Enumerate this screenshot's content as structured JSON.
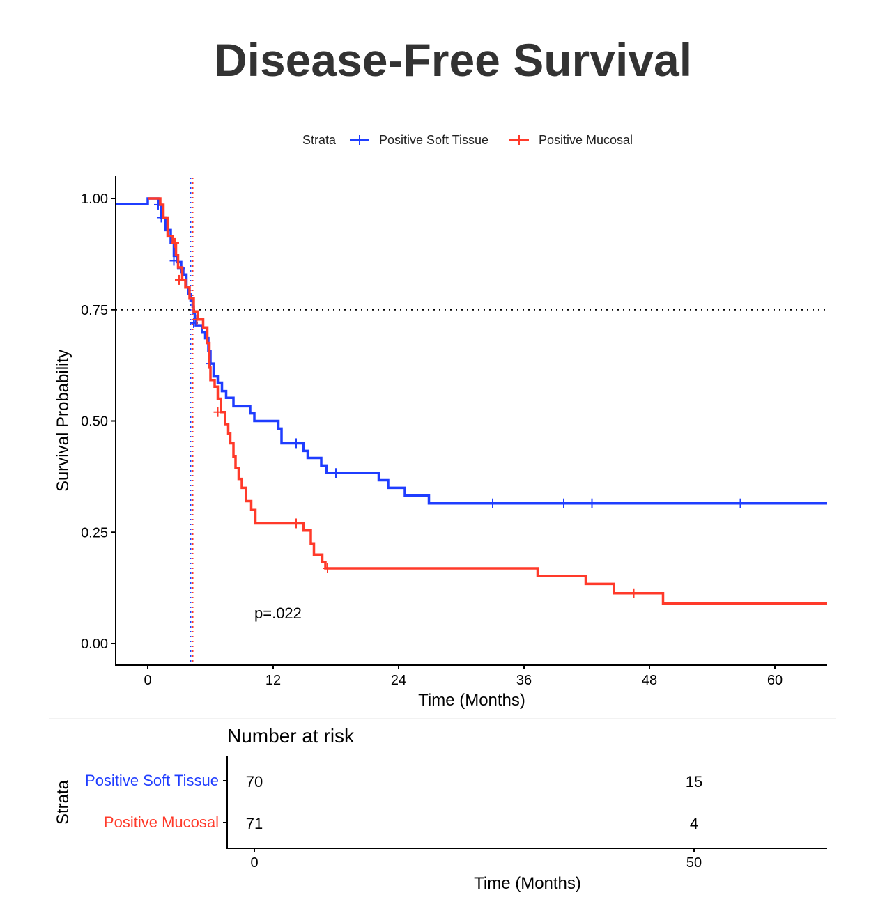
{
  "title": "Disease-Free Survival",
  "colors": {
    "blue": "#1f3dff",
    "red": "#ff3a2a"
  },
  "chart_data": [
    {
      "type": "line",
      "subtype": "kaplan-meier step",
      "title": "Disease-Free Survival",
      "xlabel": "Time (Months)",
      "ylabel": "Survival Probability",
      "xlim": [
        -3,
        65
      ],
      "ylim": [
        -0.05,
        1.05
      ],
      "xticks": [
        0,
        12,
        24,
        36,
        48,
        60
      ],
      "yticks": [
        "0.00",
        "0.25",
        "0.50",
        "0.75",
        "1.00"
      ],
      "legend": {
        "title": "Strata",
        "placement": "top"
      },
      "annotation": "p=.022",
      "annotation_pos": [
        10,
        0.07
      ],
      "reference_line_y": 0.75,
      "median_lines": [
        4.1,
        4.3
      ],
      "grid": false,
      "series": [
        {
          "name": "Positive Soft Tissue",
          "color": "#1f3dff",
          "median": 4.1,
          "steps": [
            [
              -3,
              0.987
            ],
            [
              0,
              1.0
            ],
            [
              1.0,
              0.986
            ],
            [
              1.3,
              0.957
            ],
            [
              1.7,
              0.929
            ],
            [
              2.2,
              0.9
            ],
            [
              2.5,
              0.871
            ],
            [
              2.8,
              0.857
            ],
            [
              3.2,
              0.843
            ],
            [
              3.4,
              0.829
            ],
            [
              3.7,
              0.8
            ],
            [
              3.9,
              0.786
            ],
            [
              4.1,
              0.771
            ],
            [
              4.3,
              0.757
            ],
            [
              4.4,
              0.743
            ],
            [
              4.5,
              0.729
            ],
            [
              4.6,
              0.715
            ],
            [
              5.2,
              0.7
            ],
            [
              5.5,
              0.686
            ],
            [
              5.8,
              0.657
            ],
            [
              6.0,
              0.629
            ],
            [
              6.3,
              0.6
            ],
            [
              6.7,
              0.586
            ],
            [
              7.1,
              0.567
            ],
            [
              7.5,
              0.552
            ],
            [
              8.2,
              0.533
            ],
            [
              9.8,
              0.517
            ],
            [
              10.2,
              0.5
            ],
            [
              12.5,
              0.483
            ],
            [
              12.8,
              0.45
            ],
            [
              14.9,
              0.433
            ],
            [
              15.3,
              0.417
            ],
            [
              16.6,
              0.4
            ],
            [
              17.1,
              0.383
            ],
            [
              22.1,
              0.367
            ],
            [
              23.0,
              0.35
            ],
            [
              24.6,
              0.333
            ],
            [
              26.9,
              0.315
            ],
            [
              65,
              0.315
            ]
          ],
          "censored": [
            [
              1.0,
              0.986
            ],
            [
              1.3,
              0.957
            ],
            [
              2.5,
              0.86
            ],
            [
              3.2,
              0.843
            ],
            [
              4.4,
              0.72
            ],
            [
              6.0,
              0.629
            ],
            [
              14.2,
              0.45
            ],
            [
              18.0,
              0.383
            ],
            [
              33.0,
              0.315
            ],
            [
              39.8,
              0.315
            ],
            [
              42.5,
              0.315
            ],
            [
              56.7,
              0.315
            ]
          ]
        },
        {
          "name": "Positive Mucosal",
          "color": "#ff3a2a",
          "median": 4.3,
          "steps": [
            [
              0,
              1.0
            ],
            [
              1.2,
              0.986
            ],
            [
              1.5,
              0.957
            ],
            [
              1.9,
              0.915
            ],
            [
              2.4,
              0.9
            ],
            [
              2.7,
              0.873
            ],
            [
              2.9,
              0.845
            ],
            [
              3.3,
              0.817
            ],
            [
              3.6,
              0.8
            ],
            [
              4.0,
              0.775
            ],
            [
              4.4,
              0.746
            ],
            [
              4.8,
              0.728
            ],
            [
              5.3,
              0.71
            ],
            [
              5.7,
              0.675
            ],
            [
              5.9,
              0.62
            ],
            [
              6.0,
              0.592
            ],
            [
              6.4,
              0.577
            ],
            [
              6.7,
              0.55
            ],
            [
              7.0,
              0.52
            ],
            [
              7.4,
              0.493
            ],
            [
              7.7,
              0.472
            ],
            [
              7.9,
              0.45
            ],
            [
              8.2,
              0.42
            ],
            [
              8.4,
              0.394
            ],
            [
              8.7,
              0.37
            ],
            [
              9.0,
              0.35
            ],
            [
              9.4,
              0.32
            ],
            [
              9.9,
              0.3
            ],
            [
              10.3,
              0.27
            ],
            [
              14.9,
              0.254
            ],
            [
              15.6,
              0.225
            ],
            [
              15.9,
              0.2
            ],
            [
              16.7,
              0.183
            ],
            [
              17.0,
              0.169
            ],
            [
              37.3,
              0.152
            ],
            [
              41.9,
              0.134
            ],
            [
              44.6,
              0.113
            ],
            [
              49.3,
              0.09
            ],
            [
              65,
              0.09
            ]
          ],
          "censored": [
            [
              2.6,
              0.9
            ],
            [
              3.0,
              0.817
            ],
            [
              4.7,
              0.728
            ],
            [
              6.7,
              0.52
            ],
            [
              14.2,
              0.27
            ],
            [
              17.2,
              0.169
            ],
            [
              46.5,
              0.113
            ]
          ]
        }
      ]
    },
    {
      "type": "table",
      "title": "Number at risk",
      "xlabel": "Time (Months)",
      "ylabel": "Strata",
      "xlim": [
        -3,
        65
      ],
      "xticks": [
        0,
        50
      ],
      "rows": [
        {
          "name": "Positive Soft Tissue",
          "color": "#1f3dff",
          "values": [
            70,
            15
          ]
        },
        {
          "name": "Positive Mucosal",
          "color": "#ff3a2a",
          "values": [
            71,
            4
          ]
        }
      ]
    }
  ]
}
